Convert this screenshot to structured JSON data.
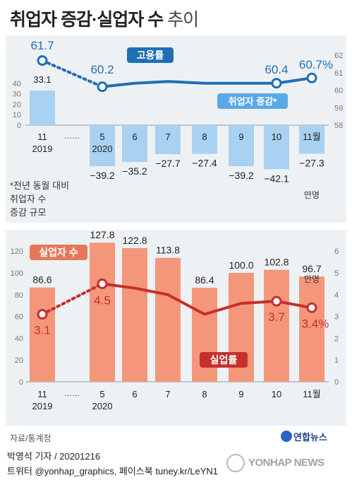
{
  "title": {
    "main": "취업자 증감·실업자 수",
    "sub": "추이"
  },
  "chart_data": [
    {
      "type": "bar",
      "categories": [
        "11\n2019",
        "5\n2020",
        "6",
        "7",
        "8",
        "9",
        "10",
        "11월"
      ],
      "gap_marker": "……",
      "series": [
        {
          "name": "취업자 증감",
          "values": [
            33.1,
            -39.2,
            -35.2,
            -27.7,
            -27.4,
            -39.2,
            -42.1,
            -27.3
          ],
          "color": "#a9d1f1"
        },
        {
          "name": "고용률",
          "values": [
            61.7,
            60.2,
            null,
            null,
            null,
            null,
            60.4,
            60.7
          ],
          "value_labels": [
            "61.7",
            "60.2",
            "",
            "",
            "",
            "",
            "60.4",
            "60.7%"
          ],
          "color": "#1f6fb5"
        }
      ],
      "line_path": [
        61.7,
        60.2,
        60.4,
        60.5,
        60.4,
        60.4,
        60.4,
        60.7
      ],
      "left_axis": {
        "ticks": [
          "40",
          "30",
          "20",
          "10",
          "0"
        ],
        "ylim": [
          -45,
          45
        ]
      },
      "right_axis": {
        "ticks": [
          "62",
          "61",
          "60",
          "59",
          "58"
        ],
        "ylim": [
          58,
          62
        ]
      },
      "note": [
        "*전년 동월 대비",
        "취업자 수",
        "증감 규모"
      ],
      "unit_label": "만명",
      "legend_line": "고용률",
      "legend_bar": "취업자 증감*"
    },
    {
      "type": "bar",
      "categories": [
        "11\n2019",
        "5\n2020",
        "6",
        "7",
        "8",
        "9",
        "10",
        "11월"
      ],
      "gap_marker": "……",
      "series": [
        {
          "name": "실업자 수",
          "values": [
            86.6,
            127.8,
            122.8,
            113.8,
            86.4,
            100.0,
            102.8,
            96.7
          ],
          "value_labels": [
            "86.6",
            "127.8",
            "122.8",
            "113.8",
            "86.4",
            "100.0",
            "102.8",
            "96.7"
          ],
          "color": "#f4967a"
        },
        {
          "name": "실업률",
          "values": [
            3.1,
            4.5,
            null,
            null,
            null,
            null,
            3.7,
            3.4
          ],
          "value_labels": [
            "3.1",
            "4.5",
            "",
            "",
            "",
            "",
            "3.7",
            "3.4%"
          ],
          "color": "#c4302b"
        }
      ],
      "line_path": [
        3.1,
        4.5,
        4.3,
        4.0,
        3.1,
        3.6,
        3.7,
        3.4
      ],
      "left_axis": {
        "ticks": [
          "120",
          "100",
          "80",
          "60",
          "40",
          "20",
          "0"
        ],
        "ylim": [
          0,
          130
        ]
      },
      "right_axis": {
        "ticks": [
          "6",
          "5",
          "4",
          "3",
          "2",
          "1",
          "0"
        ],
        "ylim": [
          0,
          6.5
        ]
      },
      "unit_label": "만명",
      "legend_bar": "실업자 수",
      "legend_line": "실업률"
    }
  ],
  "footer": {
    "source": "자료/통계청",
    "byline": "박영석 기자 /  20201216",
    "social": "트위터 @yonhap_graphics, 페이스북 tuney.kr/LeYN1",
    "logo": "연합뉴스",
    "watermark": "YONHAP NEWS"
  }
}
